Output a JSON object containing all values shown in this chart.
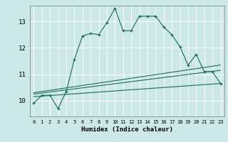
{
  "xlabel": "Humidex (Indice chaleur)",
  "bg_color": "#cce8e8",
  "grid_color": "#ffffff",
  "line_color": "#1a6b5a",
  "xlim": [
    -0.5,
    23.5
  ],
  "ylim": [
    9.4,
    13.6
  ],
  "yticks": [
    10,
    11,
    12,
    13
  ],
  "xticks": [
    0,
    1,
    2,
    3,
    4,
    5,
    6,
    7,
    8,
    9,
    10,
    11,
    12,
    13,
    14,
    15,
    16,
    17,
    18,
    19,
    20,
    21,
    22,
    23
  ],
  "main_x": [
    0,
    1,
    2,
    3,
    4,
    5,
    6,
    7,
    8,
    9,
    10,
    11,
    12,
    13,
    14,
    15,
    16,
    17,
    18,
    19,
    20,
    21,
    22,
    23
  ],
  "main_y": [
    9.9,
    10.2,
    10.2,
    9.7,
    10.35,
    11.55,
    12.45,
    12.55,
    12.5,
    12.95,
    13.5,
    12.65,
    12.65,
    13.2,
    13.2,
    13.2,
    12.8,
    12.5,
    12.05,
    11.35,
    11.75,
    11.1,
    11.1,
    10.65
  ],
  "line1_x": [
    0,
    23
  ],
  "line1_y": [
    10.15,
    10.65
  ],
  "line2_x": [
    0,
    23
  ],
  "line2_y": [
    10.25,
    11.15
  ],
  "line3_x": [
    0,
    23
  ],
  "line3_y": [
    10.3,
    11.35
  ]
}
